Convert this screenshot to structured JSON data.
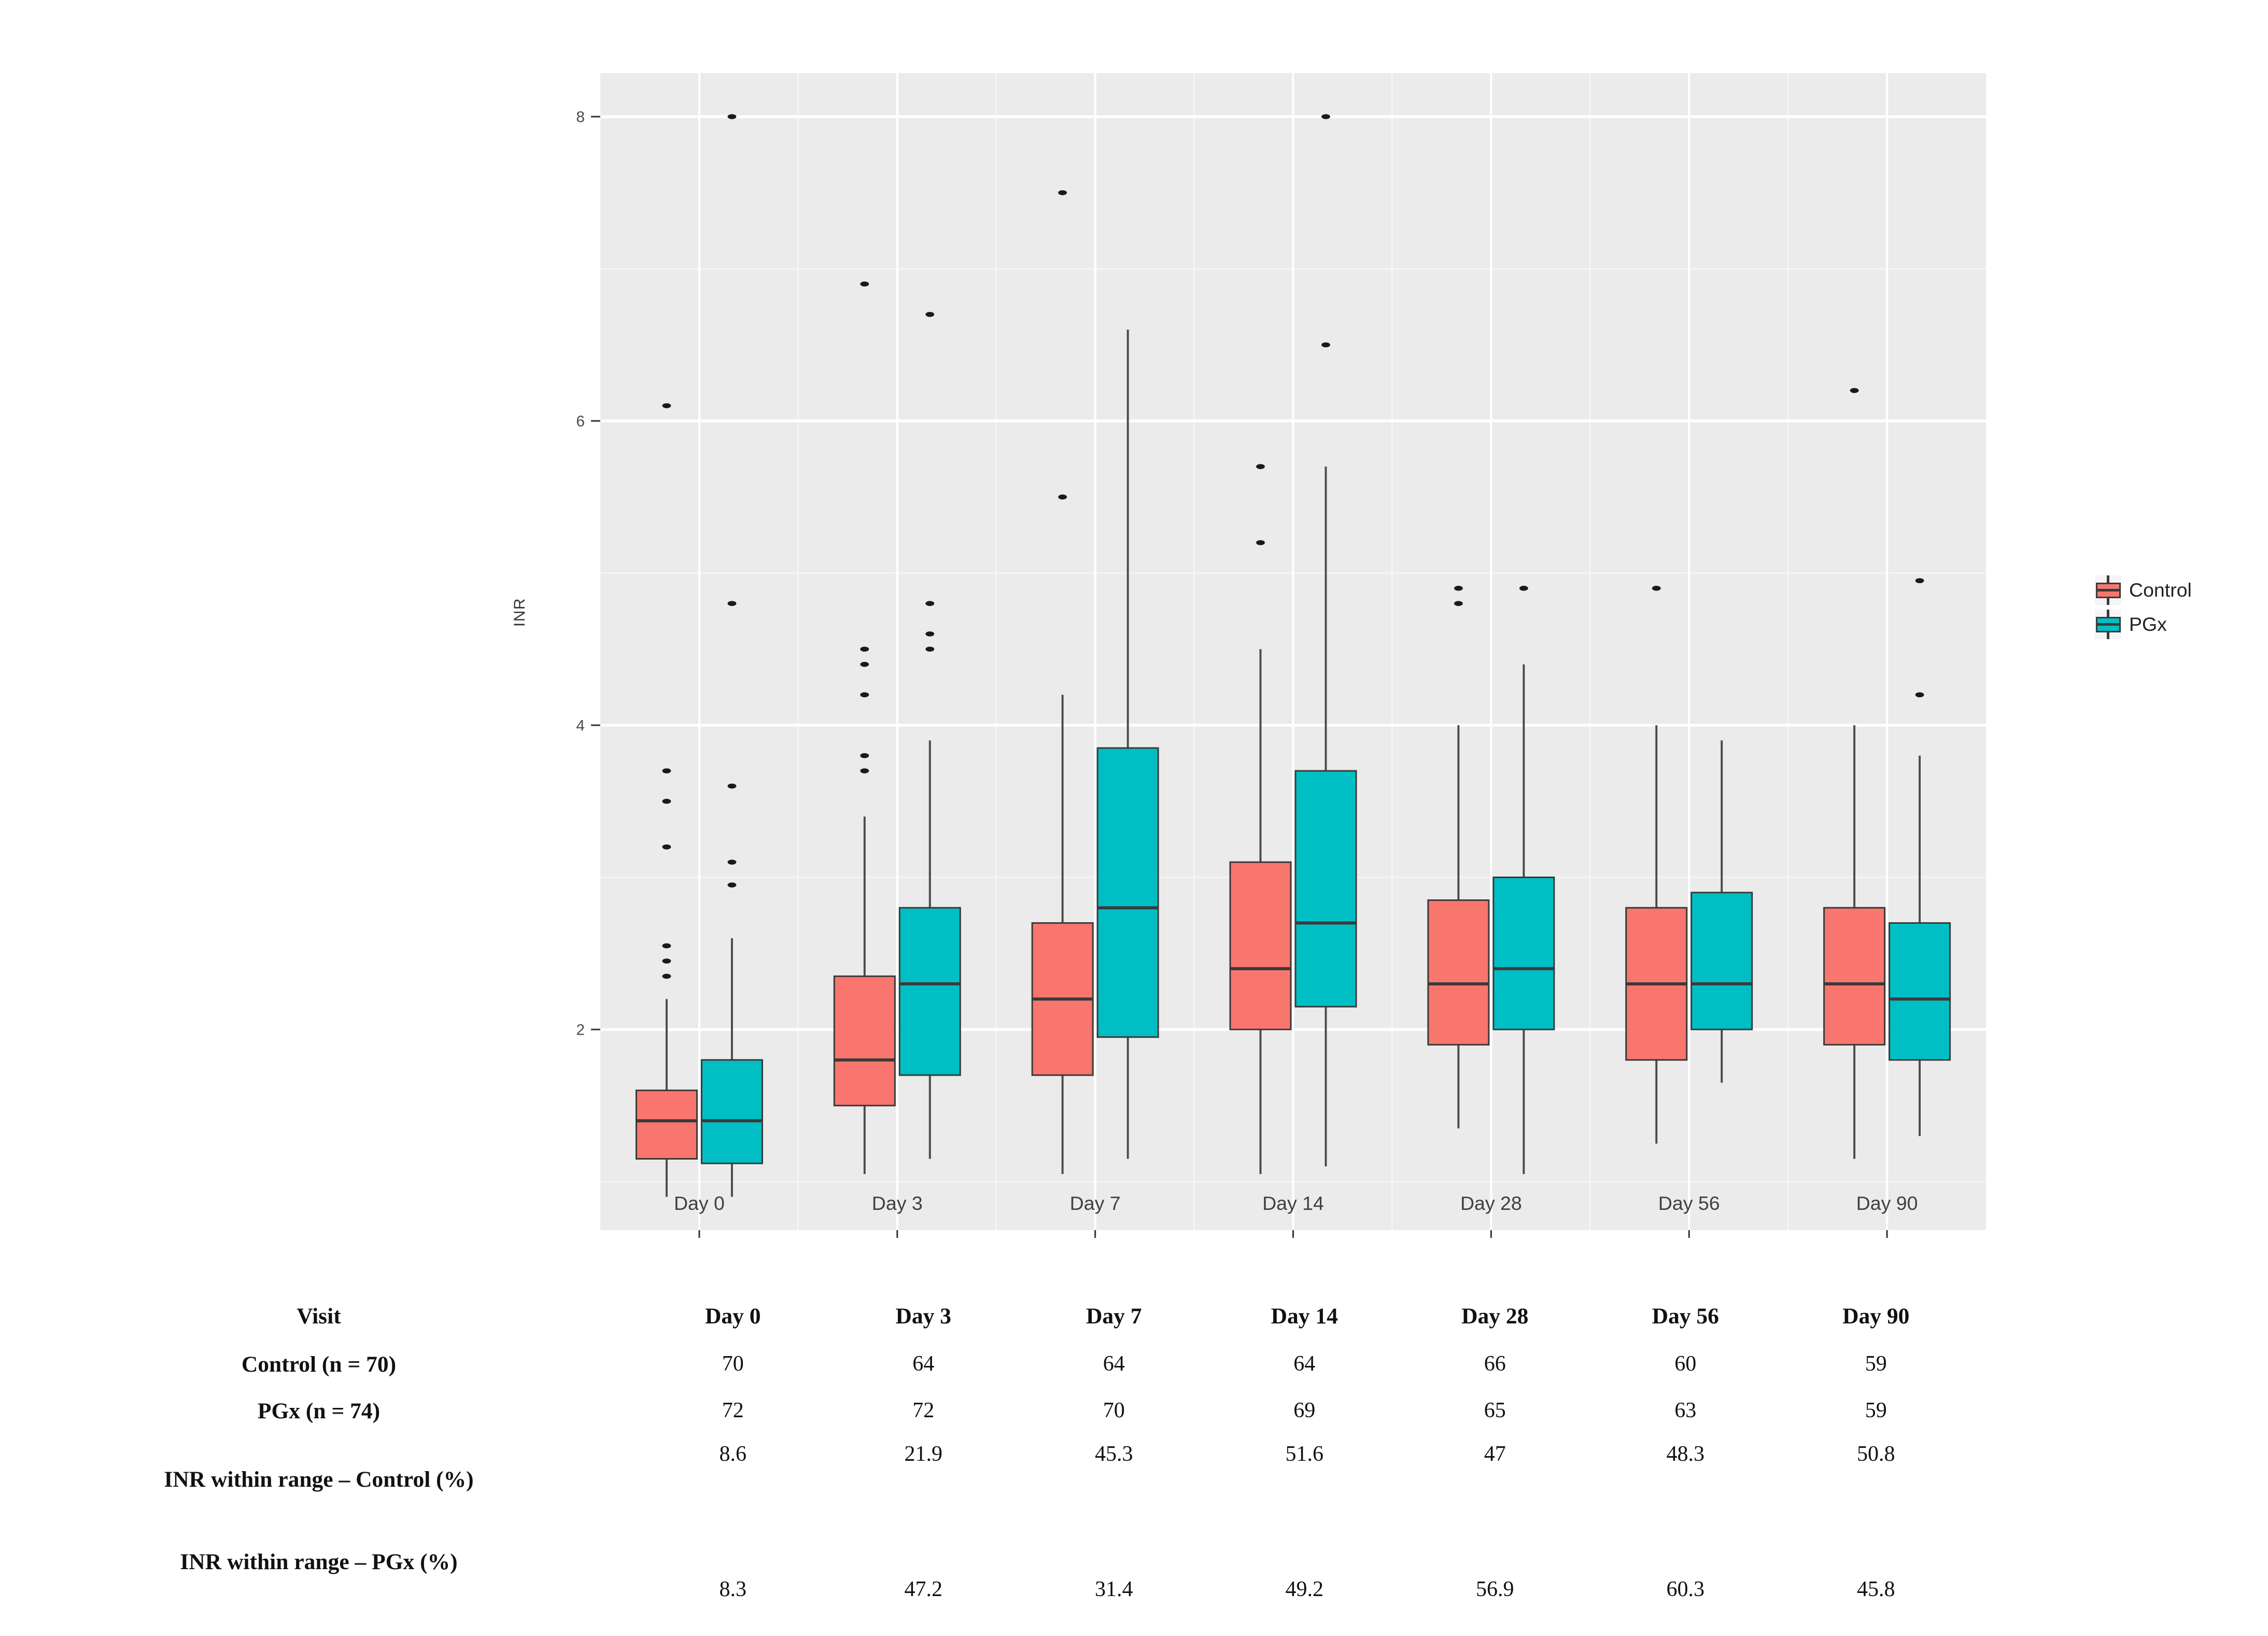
{
  "page": {
    "background": "#ffffff"
  },
  "chart_data": {
    "type": "boxplot",
    "title": "",
    "xlabel": "",
    "ylabel": "INR",
    "categories": [
      "Day 0",
      "Day 3",
      "Day 7",
      "Day 14",
      "Day 28",
      "Day 56",
      "Day 90"
    ],
    "y_axis": {
      "tick_labels": [
        "8",
        "6",
        "4",
        "2"
      ],
      "tick_values": [
        8,
        6,
        4,
        2
      ],
      "minor_gridline_values": [
        7,
        5,
        3,
        1
      ],
      "range": [
        0.68,
        8.3
      ]
    },
    "panel_background": "#EBEBEB",
    "grid_major_color": "#FFFFFF",
    "grid_minor_color": "#F5F5F5",
    "box_outline_color": "#3A3A3A",
    "whisker_color": "#4A4A4A",
    "outlier_color": "#1A1A1A",
    "legend_position": "right",
    "series": [
      {
        "name": "Control",
        "color": "#F8766D",
        "boxes": [
          {
            "category": "Day 0",
            "whisker_low": 0.9,
            "q1": 1.15,
            "median": 1.4,
            "q3": 1.6,
            "whisker_high": 2.2,
            "outliers": [
              2.35,
              2.45,
              2.55,
              3.2,
              3.5,
              3.7,
              6.1
            ]
          },
          {
            "category": "Day 3",
            "whisker_low": 1.05,
            "q1": 1.5,
            "median": 1.8,
            "q3": 2.35,
            "whisker_high": 3.4,
            "outliers": [
              3.7,
              3.8,
              4.2,
              4.4,
              4.5,
              6.9
            ]
          },
          {
            "category": "Day 7",
            "whisker_low": 1.05,
            "q1": 1.7,
            "median": 2.2,
            "q3": 2.7,
            "whisker_high": 4.2,
            "outliers": [
              5.5,
              7.5
            ]
          },
          {
            "category": "Day 14",
            "whisker_low": 1.05,
            "q1": 2.0,
            "median": 2.4,
            "q3": 3.1,
            "whisker_high": 4.5,
            "outliers": [
              5.2,
              5.7
            ]
          },
          {
            "category": "Day 28",
            "whisker_low": 1.35,
            "q1": 1.9,
            "median": 2.3,
            "q3": 2.85,
            "whisker_high": 4.0,
            "outliers": [
              4.8,
              4.9
            ]
          },
          {
            "category": "Day 56",
            "whisker_low": 1.25,
            "q1": 1.8,
            "median": 2.3,
            "q3": 2.8,
            "whisker_high": 4.0,
            "outliers": [
              4.9
            ]
          },
          {
            "category": "Day 90",
            "whisker_low": 1.15,
            "q1": 1.9,
            "median": 2.3,
            "q3": 2.8,
            "whisker_high": 4.0,
            "outliers": [
              6.2
            ]
          }
        ]
      },
      {
        "name": "PGx",
        "color": "#00BFC4",
        "boxes": [
          {
            "category": "Day 0",
            "whisker_low": 0.9,
            "q1": 1.12,
            "median": 1.4,
            "q3": 1.8,
            "whisker_high": 2.6,
            "outliers": [
              2.95,
              3.1,
              3.6,
              4.8,
              8.0
            ]
          },
          {
            "category": "Day 3",
            "whisker_low": 1.15,
            "q1": 1.7,
            "median": 2.3,
            "q3": 2.8,
            "whisker_high": 3.9,
            "outliers": [
              4.5,
              4.6,
              4.8,
              6.7
            ]
          },
          {
            "category": "Day 7",
            "whisker_low": 1.15,
            "q1": 1.95,
            "median": 2.8,
            "q3": 3.85,
            "whisker_high": 6.6,
            "outliers": []
          },
          {
            "category": "Day 14",
            "whisker_low": 1.1,
            "q1": 2.15,
            "median": 2.7,
            "q3": 3.7,
            "whisker_high": 5.7,
            "outliers": [
              6.5,
              8.0
            ]
          },
          {
            "category": "Day 28",
            "whisker_low": 1.05,
            "q1": 2.0,
            "median": 2.4,
            "q3": 3.0,
            "whisker_high": 4.4,
            "outliers": [
              4.9
            ]
          },
          {
            "category": "Day 56",
            "whisker_low": 1.65,
            "q1": 2.0,
            "median": 2.3,
            "q3": 2.9,
            "whisker_high": 3.9,
            "outliers": []
          },
          {
            "category": "Day 90",
            "whisker_low": 1.3,
            "q1": 1.8,
            "median": 2.2,
            "q3": 2.7,
            "whisker_high": 3.8,
            "outliers": [
              4.2,
              4.95
            ]
          }
        ]
      }
    ]
  },
  "legend": {
    "items": [
      {
        "label": "Control",
        "color": "#F8766D"
      },
      {
        "label": "PGx",
        "color": "#00BFC4"
      }
    ]
  },
  "table": {
    "rows": [
      {
        "label": "Visit",
        "values": [
          "Day 0",
          "Day 3",
          "Day 7",
          "Day 14",
          "Day 28",
          "Day 56",
          "Day 90"
        ]
      },
      {
        "label": "Control (n = 70)",
        "values": [
          "70",
          "64",
          "64",
          "64",
          "66",
          "60",
          "59"
        ]
      },
      {
        "label": "PGx (n = 74)",
        "values": [
          "72",
          "72",
          "70",
          "69",
          "65",
          "63",
          "59"
        ]
      },
      {
        "label": "INR within range – Control (%)",
        "values": [
          "8.6",
          "21.9",
          "45.3",
          "51.6",
          "47",
          "48.3",
          "50.8"
        ]
      },
      {
        "label": "INR within range – PGx (%)",
        "values": [
          "8.3",
          "47.2",
          "31.4",
          "49.2",
          "56.9",
          "60.3",
          "45.8"
        ]
      }
    ]
  }
}
